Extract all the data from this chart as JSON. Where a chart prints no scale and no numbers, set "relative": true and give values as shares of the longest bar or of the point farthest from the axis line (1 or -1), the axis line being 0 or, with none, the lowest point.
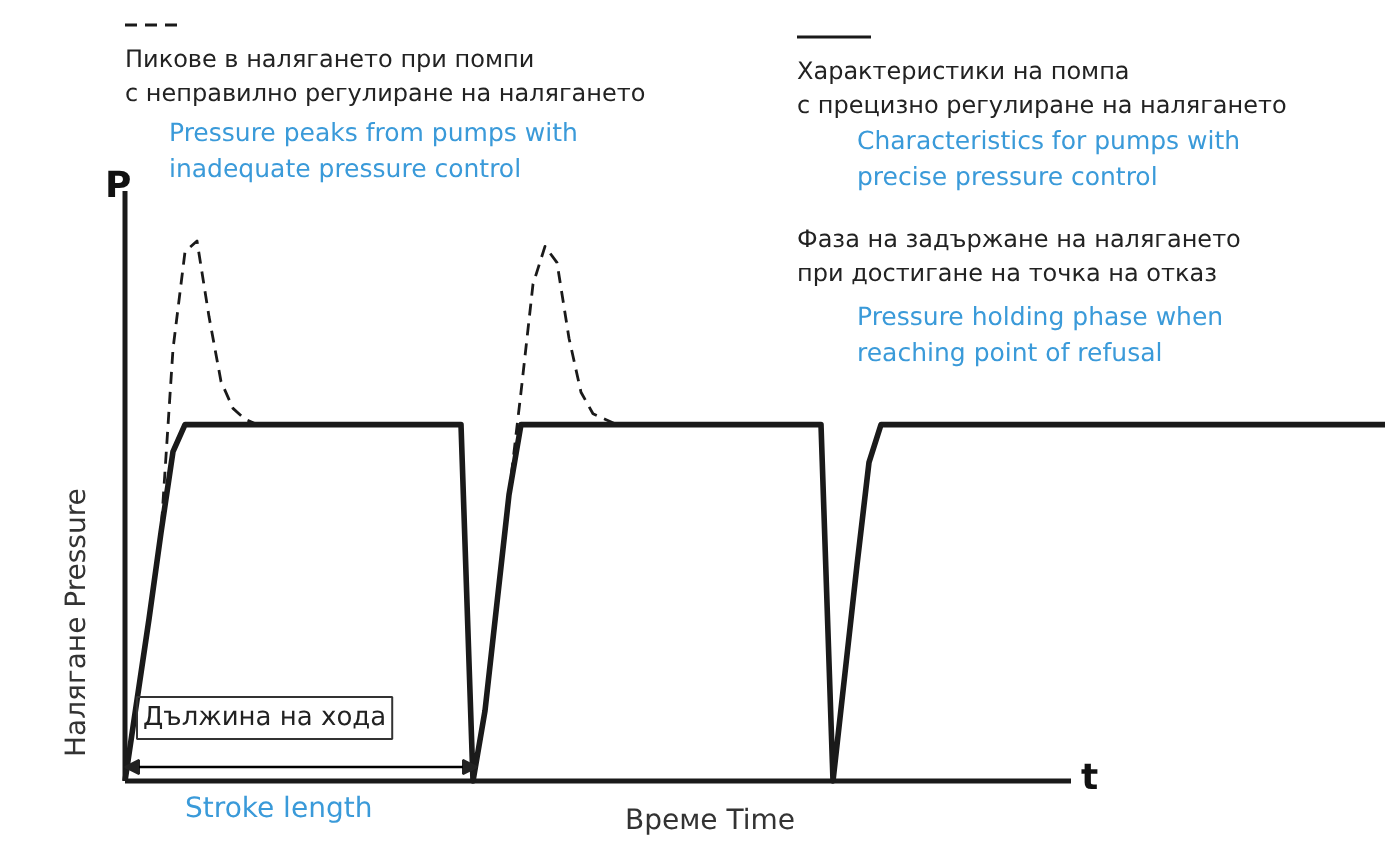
{
  "chart_data": {
    "type": "line",
    "relative": true,
    "legend": "top",
    "xlabel": "Време Time",
    "ylabel": "Налягане Pressure",
    "categories": [
      null,
      null,
      null,
      null,
      null,
      null,
      null,
      null,
      null,
      null,
      null,
      null,
      null,
      null,
      null,
      null,
      null,
      null,
      null,
      null,
      null,
      null,
      null,
      null,
      null,
      null,
      null,
      null,
      null,
      null,
      null,
      null,
      null,
      null,
      null,
      null,
      null,
      null,
      null,
      null,
      null,
      null,
      null,
      null,
      null,
      null,
      null,
      null,
      null,
      null,
      null,
      null,
      null,
      null,
      null,
      null,
      null,
      null,
      null,
      null,
      null,
      null,
      null,
      null,
      null,
      null,
      null,
      null,
      null,
      null,
      null,
      null,
      null,
      null,
      null,
      null,
      null,
      null,
      null,
      null,
      null,
      null,
      null,
      null,
      null,
      null,
      null,
      null,
      null,
      null,
      null,
      null,
      null,
      null,
      null,
      null,
      null,
      null,
      null,
      null,
      null,
      null,
      null,
      null,
      null,
      null
    ],
    "series": [
      {
        "name": "Пикове в налягането при помпи\nс неправилно регулиране на налягането",
        "color": "#1a1a1a",
        "line_style": "dashed",
        "values": [
          0,
          0.15,
          0.3,
          0.46,
          0.8,
          0.98,
          1.0,
          0.86,
          0.74,
          0.69,
          0.67,
          0.66,
          0.66,
          0.66,
          0.66,
          0.66,
          0.66,
          0.66,
          0.66,
          0.66,
          0.66,
          0.66,
          0.66,
          0.66,
          0.66,
          0.66,
          0.66,
          0.66,
          0.66,
          0,
          0.13,
          0.33,
          0.53,
          0.72,
          0.92,
          0.99,
          0.96,
          0.82,
          0.72,
          0.68,
          0.67,
          0.66,
          0.66,
          0.66,
          0.66,
          0.66,
          0.66,
          0.66,
          0.66,
          0.66,
          0.66,
          0.66,
          0.66,
          0.66,
          0.66,
          0.66,
          0.66,
          0.66,
          0.66,
          0,
          0.2,
          0.4,
          0.59,
          0.66,
          0.66,
          0.66,
          0.66,
          0.66,
          0.66,
          0.66,
          0.66,
          0.66,
          0.66,
          0.66,
          0.66,
          0.66,
          0.66,
          0.66,
          0.66,
          0.66,
          0.66,
          0.66,
          0.66,
          0.66,
          0.66,
          0.66,
          0.66,
          0.66,
          0.66,
          0.66,
          0.66,
          0.66,
          0.66,
          0.66,
          0.66,
          0.66,
          0.66,
          0.66,
          0.66,
          0.66,
          0.66,
          0.66,
          0.66,
          0.66,
          0.66,
          0.66
        ]
      },
      {
        "name": "Характеристики на помпа\nс прецизно регулиране на налягането",
        "color": "#1a1a1a",
        "line_style": "solid",
        "values": [
          0,
          0.15,
          0.3,
          0.46,
          0.61,
          0.66,
          0.66,
          0.66,
          0.66,
          0.66,
          0.66,
          0.66,
          0.66,
          0.66,
          0.66,
          0.66,
          0.66,
          0.66,
          0.66,
          0.66,
          0.66,
          0.66,
          0.66,
          0.66,
          0.66,
          0.66,
          0.66,
          0.66,
          0.66,
          0,
          0.13,
          0.33,
          0.53,
          0.66,
          0.66,
          0.66,
          0.66,
          0.66,
          0.66,
          0.66,
          0.66,
          0.66,
          0.66,
          0.66,
          0.66,
          0.66,
          0.66,
          0.66,
          0.66,
          0.66,
          0.66,
          0.66,
          0.66,
          0.66,
          0.66,
          0.66,
          0.66,
          0.66,
          0.66,
          0,
          0.2,
          0.4,
          0.59,
          0.66,
          0.66,
          0.66,
          0.66,
          0.66,
          0.66,
          0.66,
          0.66,
          0.66,
          0.66,
          0.66,
          0.66,
          0.66,
          0.66,
          0.66,
          0.66,
          0.66,
          0.66,
          0.66,
          0.66,
          0.66,
          0.66,
          0.66,
          0.66,
          0.66,
          0.66,
          0.66,
          0.66,
          0.66,
          0.66,
          0.66,
          0.66,
          0.66,
          0.66,
          0.66,
          0.66,
          0.66,
          0.66,
          0.66,
          0.66,
          0.66,
          0.66,
          0.66
        ]
      }
    ],
    "annotations": [
      "Pressure peaks from pumps with\ninadequate pressure control",
      "Characteristics for pumps with\nprecise pressure control",
      "Фаза на задържане на налягането\nпри достигане на точка на отказ",
      "Pressure holding phase when\nreaching point of refusal",
      "Дължина на хода",
      "Stroke length",
      "P",
      "t"
    ]
  }
}
